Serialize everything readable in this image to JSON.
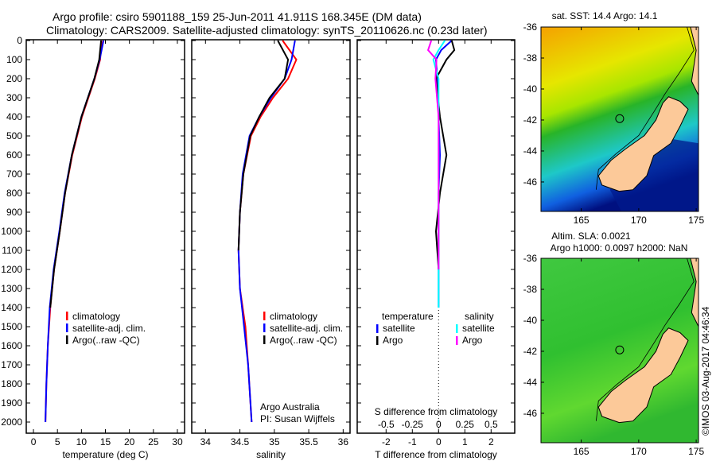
{
  "title_line1": "Argo profile: csiro 5901188_159 25-Jun-2011 41.911S 168.345E (DM data)",
  "title_line2": "Climatology: CARS2009. Satellite-adjusted climatology: synTS_20110626.nc (0.23d later)",
  "credit": "Argo Australia",
  "pi": "PI: Susan Wijffels",
  "imos": "©IMOS 03-Aug-2017 04:46:34",
  "colors": {
    "climatology": "#ff0000",
    "satellite": "#0000ff",
    "argo": "#000000",
    "sal_satellite": "#00ffff",
    "sal_argo": "#ff00ff",
    "land": "#fcc999"
  },
  "chart_data": [
    {
      "type": "line",
      "xlabel": "temperature (deg C)",
      "ylabel": "",
      "xlim": [
        -1.5,
        31.5
      ],
      "ylim": [
        2080,
        0
      ],
      "xticks": [
        0,
        5,
        10,
        15,
        20,
        25,
        30
      ],
      "yticks": [
        0,
        100,
        200,
        300,
        400,
        500,
        600,
        700,
        800,
        900,
        1000,
        1100,
        1200,
        1300,
        1400,
        1500,
        1600,
        1700,
        1800,
        1900,
        2000
      ],
      "legend": [
        "climatology",
        "satellite-adj. clim.",
        "Argo(..raw -QC)"
      ],
      "depth": [
        0,
        100,
        200,
        400,
        600,
        800,
        1000,
        1200,
        1400,
        1600,
        1800,
        2000
      ],
      "series": [
        {
          "name": "climatology",
          "values": [
            14.2,
            13.9,
            12.8,
            10.1,
            8.1,
            6.6,
            5.5,
            4.3,
            3.5,
            3.0,
            2.7,
            2.5
          ]
        },
        {
          "name": "satellite-adj. clim.",
          "values": [
            14.6,
            13.8,
            12.7,
            10.0,
            8.0,
            6.5,
            5.4,
            4.2,
            3.4,
            3.0,
            2.7,
            2.5
          ]
        },
        {
          "name": "Argo(..raw -QC)",
          "values": [
            14.1,
            13.7,
            12.7,
            10.0,
            8.0,
            6.6,
            5.5,
            4.3,
            3.5,
            null,
            null,
            null
          ]
        }
      ]
    },
    {
      "type": "line",
      "xlabel": "salinity",
      "xlim": [
        33.8,
        36.1
      ],
      "ylim": [
        2080,
        0
      ],
      "xticks": [
        34,
        34.5,
        35,
        35.5,
        36
      ],
      "legend": [
        "climatology",
        "satellite-adj. clim.",
        "Argo(..raw -QC)"
      ],
      "depth": [
        0,
        100,
        200,
        300,
        400,
        500,
        700,
        900,
        1100,
        1300,
        1500,
        1700,
        2000
      ],
      "series": [
        {
          "name": "climatology",
          "values": [
            35.12,
            35.32,
            35.2,
            34.98,
            34.8,
            34.66,
            34.55,
            34.5,
            34.48,
            34.5,
            34.58,
            34.62,
            34.67
          ]
        },
        {
          "name": "satellite-adj. clim.",
          "values": [
            35.3,
            35.25,
            35.15,
            34.95,
            34.78,
            34.64,
            34.54,
            34.5,
            34.48,
            34.5,
            34.56,
            34.62,
            34.67
          ]
        },
        {
          "name": "Argo(..raw -QC)",
          "values": [
            35.05,
            35.2,
            35.15,
            34.93,
            34.78,
            34.65,
            34.55,
            34.5,
            34.48,
            null,
            null,
            null,
            null
          ]
        }
      ]
    },
    {
      "type": "line",
      "xlabel": "T difference from climatology",
      "x2label": "S difference from climatology",
      "xlim": [
        -3.1,
        2.9
      ],
      "x2lim": [
        -0.775,
        0.725
      ],
      "xticks": [
        -2,
        -1,
        0,
        1,
        2
      ],
      "x2ticks": [
        "-0.5",
        "-0.25",
        "0",
        "0.25",
        "0.5"
      ],
      "legend_temp_title": "temperature",
      "legend_sal_title": "salinity",
      "legend": [
        "satellite",
        "Argo",
        "satellite",
        "Argo"
      ],
      "depth": [
        0,
        50,
        100,
        200,
        400,
        600,
        800,
        1000,
        1200,
        1400
      ],
      "series": [
        {
          "name": "T satellite",
          "values": [
            0.5,
            0.1,
            -0.1,
            -0.05,
            0.0,
            0.05,
            0.0,
            0.0,
            0.0,
            0.0
          ]
        },
        {
          "name": "T Argo",
          "values": [
            0.5,
            0.6,
            0.3,
            -0.1,
            0.05,
            0.3,
            0.05,
            -0.1,
            0.0,
            null
          ]
        },
        {
          "name": "S satellite",
          "values": [
            0.06,
            0.0,
            -0.05,
            0.0,
            0.0,
            0.0,
            0.0,
            0.0,
            0.0,
            0.0
          ]
        },
        {
          "name": "S Argo",
          "values": [
            -0.07,
            -0.1,
            -0.02,
            -0.03,
            0.0,
            0.0,
            0.0,
            0.0,
            0.0,
            null
          ]
        }
      ]
    },
    {
      "type": "heatmap",
      "title": "sat. SST: 14.4 Argo: 14.1",
      "xticks": [
        165,
        170,
        175
      ],
      "yticks": [
        -36,
        -38,
        -40,
        -42,
        -44,
        -46
      ],
      "xlim": [
        161.5,
        175.2
      ],
      "ylim": [
        -47.9,
        -36
      ],
      "marker": [
        168.345,
        -41.911
      ]
    },
    {
      "type": "heatmap",
      "title": "Altim. SLA: 0.0021",
      "subtitle": "Argo h1000: 0.0097 h2000: NaN",
      "xticks": [
        165,
        170,
        175
      ],
      "yticks": [
        -36,
        -38,
        -40,
        -42,
        -44,
        -46
      ],
      "xlim": [
        161.5,
        175.2
      ],
      "ylim": [
        -47.9,
        -36
      ],
      "marker": [
        168.345,
        -41.911
      ]
    }
  ]
}
